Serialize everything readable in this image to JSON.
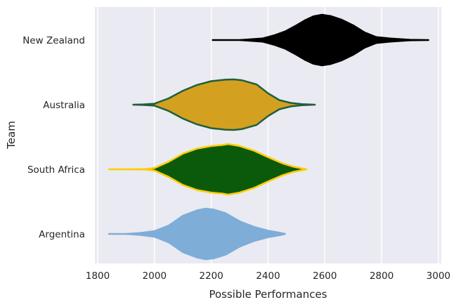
{
  "chart_data": {
    "type": "violin",
    "title": "",
    "xlabel": "Possible Performances",
    "ylabel": "Team",
    "xlim": [
      1790,
      3010
    ],
    "xticks": [
      1800,
      2000,
      2200,
      2400,
      2600,
      2800,
      3000
    ],
    "grid": true,
    "background": "#eaeaf2",
    "categories": [
      "New Zealand",
      "Australia",
      "South Africa",
      "Argentina"
    ],
    "series": [
      {
        "name": "New Zealand",
        "fill": "#000000",
        "edge": "#000000",
        "min": 2205,
        "max": 2965,
        "profile": [
          [
            2205,
            0.0
          ],
          [
            2300,
            0.0
          ],
          [
            2380,
            0.06
          ],
          [
            2420,
            0.18
          ],
          [
            2460,
            0.34
          ],
          [
            2500,
            0.58
          ],
          [
            2530,
            0.78
          ],
          [
            2560,
            0.94
          ],
          [
            2590,
            1.0
          ],
          [
            2620,
            0.95
          ],
          [
            2660,
            0.8
          ],
          [
            2700,
            0.58
          ],
          [
            2740,
            0.3
          ],
          [
            2780,
            0.12
          ],
          [
            2830,
            0.06
          ],
          [
            2900,
            0.01
          ],
          [
            2965,
            0.0
          ]
        ]
      },
      {
        "name": "Australia",
        "fill": "#d4a01f",
        "edge": "#1f5f3e",
        "min": 1925,
        "max": 2565,
        "profile": [
          [
            1925,
            0.0
          ],
          [
            1960,
            0.01
          ],
          [
            2000,
            0.04
          ],
          [
            2050,
            0.25
          ],
          [
            2100,
            0.55
          ],
          [
            2150,
            0.78
          ],
          [
            2200,
            0.93
          ],
          [
            2250,
            0.99
          ],
          [
            2280,
            1.0
          ],
          [
            2310,
            0.96
          ],
          [
            2360,
            0.8
          ],
          [
            2400,
            0.45
          ],
          [
            2440,
            0.18
          ],
          [
            2480,
            0.07
          ],
          [
            2520,
            0.02
          ],
          [
            2565,
            0.0
          ]
        ]
      },
      {
        "name": "South Africa",
        "fill": "#0b5a0b",
        "edge": "#ffcc00",
        "min": 1840,
        "max": 2535,
        "profile": [
          [
            1840,
            0.0
          ],
          [
            1900,
            0.0
          ],
          [
            1970,
            0.01
          ],
          [
            2000,
            0.05
          ],
          [
            2050,
            0.3
          ],
          [
            2100,
            0.62
          ],
          [
            2150,
            0.82
          ],
          [
            2200,
            0.92
          ],
          [
            2240,
            0.96
          ],
          [
            2260,
            1.0
          ],
          [
            2300,
            0.92
          ],
          [
            2350,
            0.74
          ],
          [
            2400,
            0.48
          ],
          [
            2450,
            0.24
          ],
          [
            2490,
            0.1
          ],
          [
            2535,
            0.0
          ]
        ]
      },
      {
        "name": "Argentina",
        "fill": "#7eadd8",
        "edge": "#7eadd8",
        "min": 1840,
        "max": 2460,
        "profile": [
          [
            1840,
            0.0
          ],
          [
            1900,
            0.0
          ],
          [
            1950,
            0.04
          ],
          [
            2000,
            0.11
          ],
          [
            2050,
            0.33
          ],
          [
            2100,
            0.72
          ],
          [
            2150,
            0.93
          ],
          [
            2180,
            1.0
          ],
          [
            2210,
            0.96
          ],
          [
            2250,
            0.82
          ],
          [
            2300,
            0.5
          ],
          [
            2350,
            0.28
          ],
          [
            2400,
            0.13
          ],
          [
            2440,
            0.05
          ],
          [
            2460,
            0.0
          ]
        ]
      }
    ]
  }
}
